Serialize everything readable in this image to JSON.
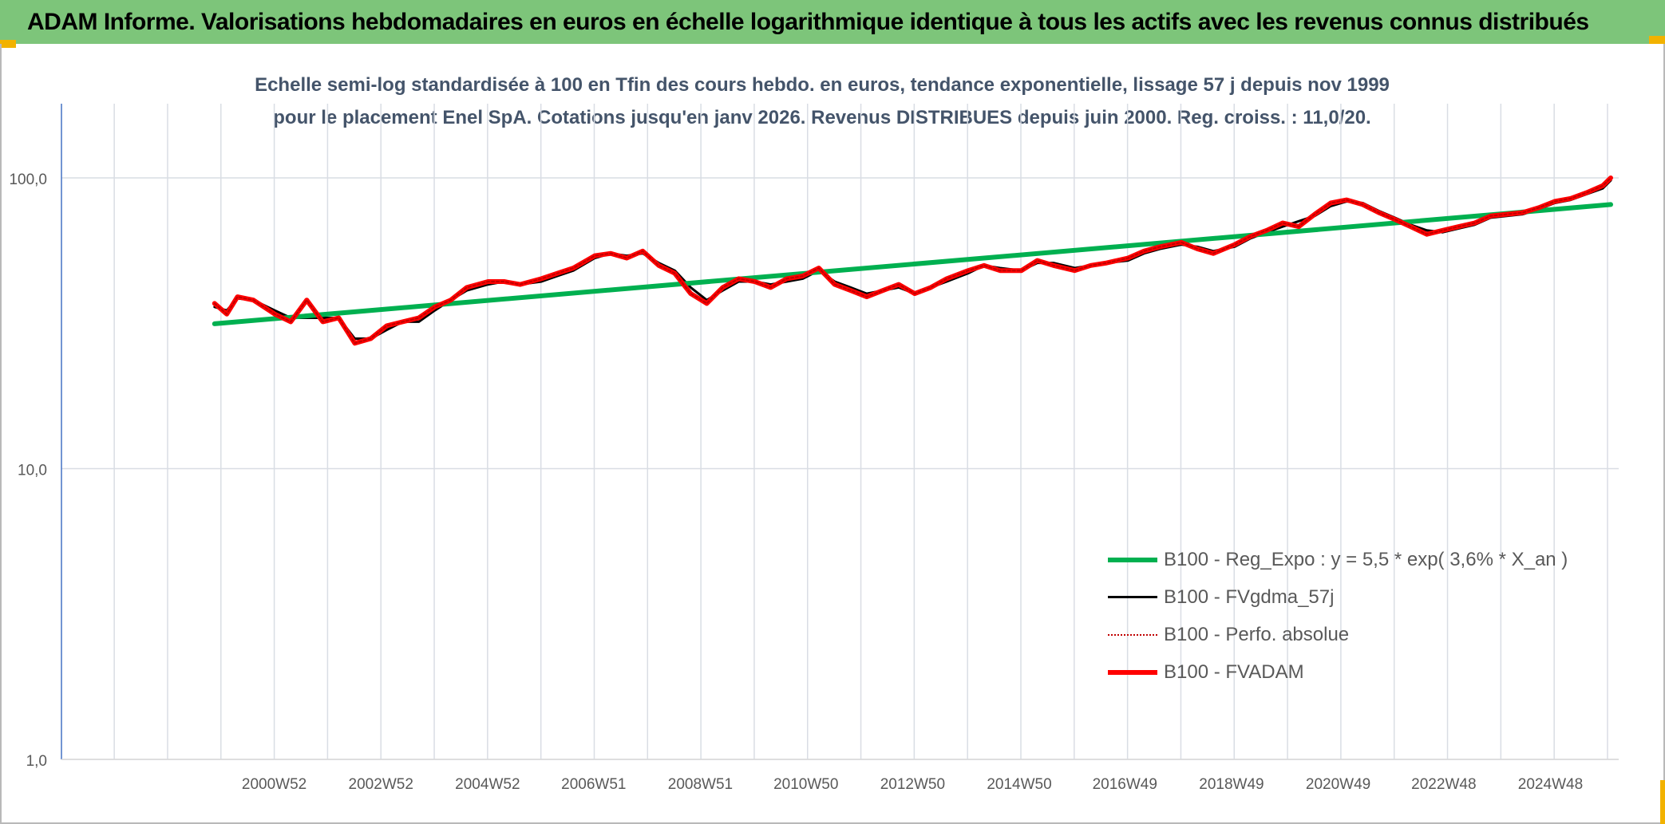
{
  "header": {
    "title": "ADAM Informe. Valorisations hebdomadaires en euros en échelle logarithmique identique à tous les actifs avec les revenus connus distribués"
  },
  "chart_data": {
    "type": "line",
    "title": "Echelle semi-log standardisée à 100 en Tfin des cours hebdo. en euros, tendance exponentielle, lissage 57 j depuis nov 1999 pour le placement Enel SpA. Cotations jusqu'en janv 2026. Revenus DISTRIBUES depuis juin 2000. Reg. croiss. : 11,0/20.",
    "xlabel": "",
    "ylabel": "",
    "y_scale": "log",
    "ylim": [
      1,
      180
    ],
    "xlim": [
      1997.0,
      2026.2
    ],
    "grid": true,
    "legend_position": "bottom-right",
    "y_ticks": [
      {
        "value": 100,
        "label": "100,0"
      },
      {
        "value": 10,
        "label": "10,0"
      },
      {
        "value": 1,
        "label": "1,0"
      }
    ],
    "x_ticks": [
      {
        "year": 2000.99,
        "label": "2000W52"
      },
      {
        "year": 2002.99,
        "label": "2002W52"
      },
      {
        "year": 2004.99,
        "label": "2004W52"
      },
      {
        "year": 2006.98,
        "label": "2006W51"
      },
      {
        "year": 2008.98,
        "label": "2008W51"
      },
      {
        "year": 2010.96,
        "label": "2010W50"
      },
      {
        "year": 2012.96,
        "label": "2012W50"
      },
      {
        "year": 2014.96,
        "label": "2014W50"
      },
      {
        "year": 2016.94,
        "label": "2016W49"
      },
      {
        "year": 2018.94,
        "label": "2018W49"
      },
      {
        "year": 2020.94,
        "label": "2020W49"
      },
      {
        "year": 2022.92,
        "label": "2022W48"
      },
      {
        "year": 2024.92,
        "label": "2024W48"
      }
    ],
    "series": [
      {
        "name": "B100 - Reg_Expo : y = 5,5 * exp( 3,6% *  X_an )",
        "color": "#00b050",
        "style": "solid-thick",
        "x": [
          1999.87,
          2026.05
        ],
        "y": [
          31.5,
          81.0
        ]
      },
      {
        "name": "B100 - FVgdma_57j",
        "color": "#000000",
        "style": "solid",
        "x": [
          1999.87,
          2000.1,
          2000.3,
          2000.6,
          2001.0,
          2001.3,
          2001.6,
          2001.9,
          2002.2,
          2002.5,
          2002.8,
          2003.1,
          2003.4,
          2003.7,
          2004.0,
          2004.3,
          2004.6,
          2005.0,
          2005.3,
          2005.6,
          2006.0,
          2006.3,
          2006.6,
          2007.0,
          2007.3,
          2007.6,
          2007.9,
          2008.2,
          2008.5,
          2008.8,
          2009.1,
          2009.4,
          2009.7,
          2010.0,
          2010.3,
          2010.6,
          2010.9,
          2011.2,
          2011.5,
          2011.8,
          2012.1,
          2012.4,
          2012.7,
          2013.0,
          2013.3,
          2013.6,
          2014.0,
          2014.3,
          2014.6,
          2015.0,
          2015.3,
          2015.6,
          2016.0,
          2016.3,
          2016.6,
          2017.0,
          2017.3,
          2017.6,
          2018.0,
          2018.3,
          2018.6,
          2019.0,
          2019.3,
          2019.6,
          2019.9,
          2020.2,
          2020.5,
          2020.8,
          2021.1,
          2021.4,
          2021.7,
          2022.0,
          2022.3,
          2022.6,
          2022.9,
          2023.2,
          2023.5,
          2023.8,
          2024.1,
          2024.4,
          2024.7,
          2025.0,
          2025.3,
          2025.6,
          2025.9,
          2026.05
        ],
        "y": [
          36,
          35,
          38.5,
          38,
          35,
          33,
          33,
          33,
          33,
          28,
          28,
          30,
          32,
          32,
          35,
          38,
          41,
          43,
          44,
          43,
          44,
          46,
          48,
          53,
          55,
          54,
          55,
          51,
          48,
          42,
          38,
          41,
          44,
          44,
          43,
          44,
          45,
          48,
          44,
          42,
          40,
          41,
          42,
          40,
          42,
          44,
          47,
          50,
          49,
          48,
          51,
          51,
          49,
          50,
          51,
          52,
          55,
          57,
          59,
          58,
          56,
          58,
          62,
          65,
          68,
          71,
          74,
          80,
          83,
          82,
          77,
          73,
          69,
          66,
          65,
          67,
          69,
          73,
          74,
          75,
          78,
          82,
          84,
          88,
          92,
          98
        ]
      },
      {
        "name": "B100 - Perfo. absolue",
        "color": "#c00000",
        "style": "dotted",
        "x": [
          1999.87,
          2000.1,
          2000.3,
          2000.6,
          2001.0,
          2001.3,
          2001.6,
          2001.9,
          2002.2,
          2002.5,
          2002.8,
          2003.1,
          2003.4,
          2003.7,
          2004.0,
          2004.3,
          2004.6,
          2005.0,
          2005.3,
          2005.6,
          2006.0,
          2006.3,
          2006.6,
          2007.0,
          2007.3,
          2007.6,
          2007.9,
          2008.2,
          2008.5,
          2008.8,
          2009.1,
          2009.4,
          2009.7,
          2010.0,
          2010.3,
          2010.6,
          2010.9,
          2011.2,
          2011.5,
          2011.8,
          2012.1,
          2012.4,
          2012.7,
          2013.0,
          2013.3,
          2013.6,
          2014.0,
          2014.3,
          2014.6,
          2015.0,
          2015.3,
          2015.6,
          2016.0,
          2016.3,
          2016.6,
          2017.0,
          2017.3,
          2017.6,
          2018.0,
          2018.3,
          2018.6,
          2019.0,
          2019.3,
          2019.6,
          2019.9,
          2020.2,
          2020.5,
          2020.8,
          2021.1,
          2021.4,
          2021.7,
          2022.0,
          2022.3,
          2022.6,
          2022.9,
          2023.2,
          2023.5,
          2023.8,
          2024.1,
          2024.4,
          2024.7,
          2025.0,
          2025.3,
          2025.6,
          2025.9,
          2026.05
        ],
        "y": [
          37,
          34,
          39,
          38,
          34,
          32,
          38,
          32,
          33,
          27,
          28,
          31,
          32,
          33,
          36,
          38,
          42,
          44,
          44,
          43,
          45,
          47,
          49,
          54,
          55,
          53,
          56,
          50,
          47,
          40,
          37,
          42,
          45,
          44,
          42,
          45,
          46,
          49,
          43,
          41,
          39,
          41,
          43,
          40,
          42,
          45,
          48,
          50,
          48,
          48,
          52,
          50,
          48,
          50,
          51,
          53,
          56,
          58,
          60,
          57,
          55,
          59,
          63,
          66,
          70,
          68,
          75,
          82,
          84,
          81,
          76,
          72,
          68,
          64,
          66,
          68,
          70,
          74,
          75,
          76,
          79,
          83,
          85,
          89,
          94,
          100
        ]
      },
      {
        "name": "B100 - FVADAM",
        "color": "#ff0000",
        "style": "solid-thick",
        "x": [
          1999.87,
          2000.1,
          2000.3,
          2000.6,
          2001.0,
          2001.3,
          2001.6,
          2001.9,
          2002.2,
          2002.5,
          2002.8,
          2003.1,
          2003.4,
          2003.7,
          2004.0,
          2004.3,
          2004.6,
          2005.0,
          2005.3,
          2005.6,
          2006.0,
          2006.3,
          2006.6,
          2007.0,
          2007.3,
          2007.6,
          2007.9,
          2008.2,
          2008.5,
          2008.8,
          2009.1,
          2009.4,
          2009.7,
          2010.0,
          2010.3,
          2010.6,
          2010.9,
          2011.2,
          2011.5,
          2011.8,
          2012.1,
          2012.4,
          2012.7,
          2013.0,
          2013.3,
          2013.6,
          2014.0,
          2014.3,
          2014.6,
          2015.0,
          2015.3,
          2015.6,
          2016.0,
          2016.3,
          2016.6,
          2017.0,
          2017.3,
          2017.6,
          2018.0,
          2018.3,
          2018.6,
          2019.0,
          2019.3,
          2019.6,
          2019.9,
          2020.2,
          2020.5,
          2020.8,
          2021.1,
          2021.4,
          2021.7,
          2022.0,
          2022.3,
          2022.6,
          2022.9,
          2023.2,
          2023.5,
          2023.8,
          2024.1,
          2024.4,
          2024.7,
          2025.0,
          2025.3,
          2025.6,
          2025.9,
          2026.05
        ],
        "y": [
          37,
          34,
          39,
          38,
          34,
          32,
          38,
          32,
          33,
          27,
          28,
          31,
          32,
          33,
          36,
          38,
          42,
          44,
          44,
          43,
          45,
          47,
          49,
          54,
          55,
          53,
          56,
          50,
          47,
          40,
          37,
          42,
          45,
          44,
          42,
          45,
          46,
          49,
          43,
          41,
          39,
          41,
          43,
          40,
          42,
          45,
          48,
          50,
          48,
          48,
          52,
          50,
          48,
          50,
          51,
          53,
          56,
          58,
          60,
          57,
          55,
          59,
          63,
          66,
          70,
          68,
          75,
          82,
          84,
          81,
          76,
          72,
          68,
          64,
          66,
          68,
          70,
          74,
          75,
          76,
          79,
          83,
          85,
          89,
          94,
          100
        ]
      }
    ]
  }
}
